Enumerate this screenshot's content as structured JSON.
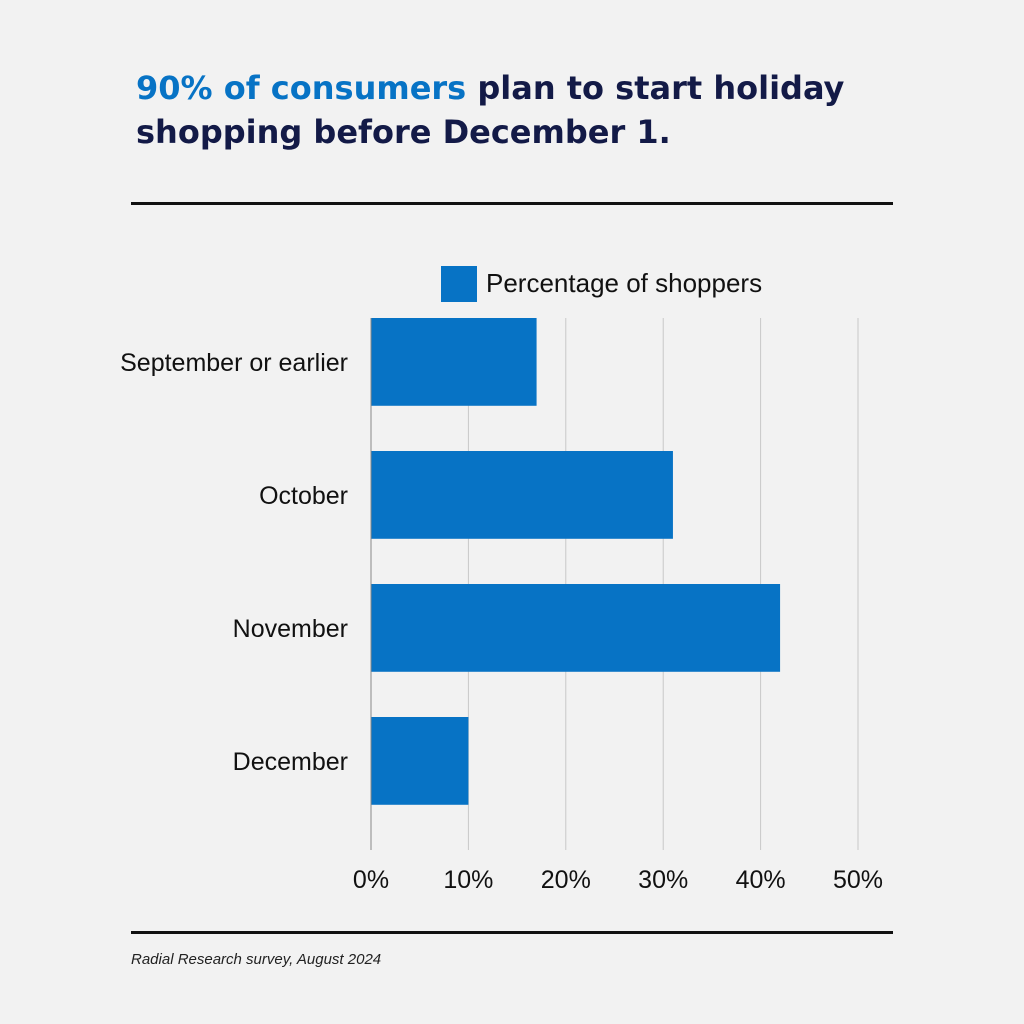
{
  "headline": {
    "highlight": "90% of consumers",
    "rest": " plan to start holiday shopping before December 1."
  },
  "source": "Radial Research survey, August 2024",
  "colors": {
    "bar": "#0773c5",
    "headline_highlight": "#0773c5",
    "headline": "#131a47"
  },
  "chart_data": {
    "type": "bar",
    "orientation": "horizontal",
    "categories": [
      "September or earlier",
      "October",
      "November",
      "December"
    ],
    "series": [
      {
        "name": "Percentage of shoppers",
        "values": [
          17,
          31,
          42,
          10
        ]
      }
    ],
    "x_ticks": [
      "0%",
      "10%",
      "20%",
      "30%",
      "40%",
      "50%"
    ],
    "xlim": [
      0,
      50
    ],
    "grid": "vertical",
    "legend": "top-center"
  }
}
